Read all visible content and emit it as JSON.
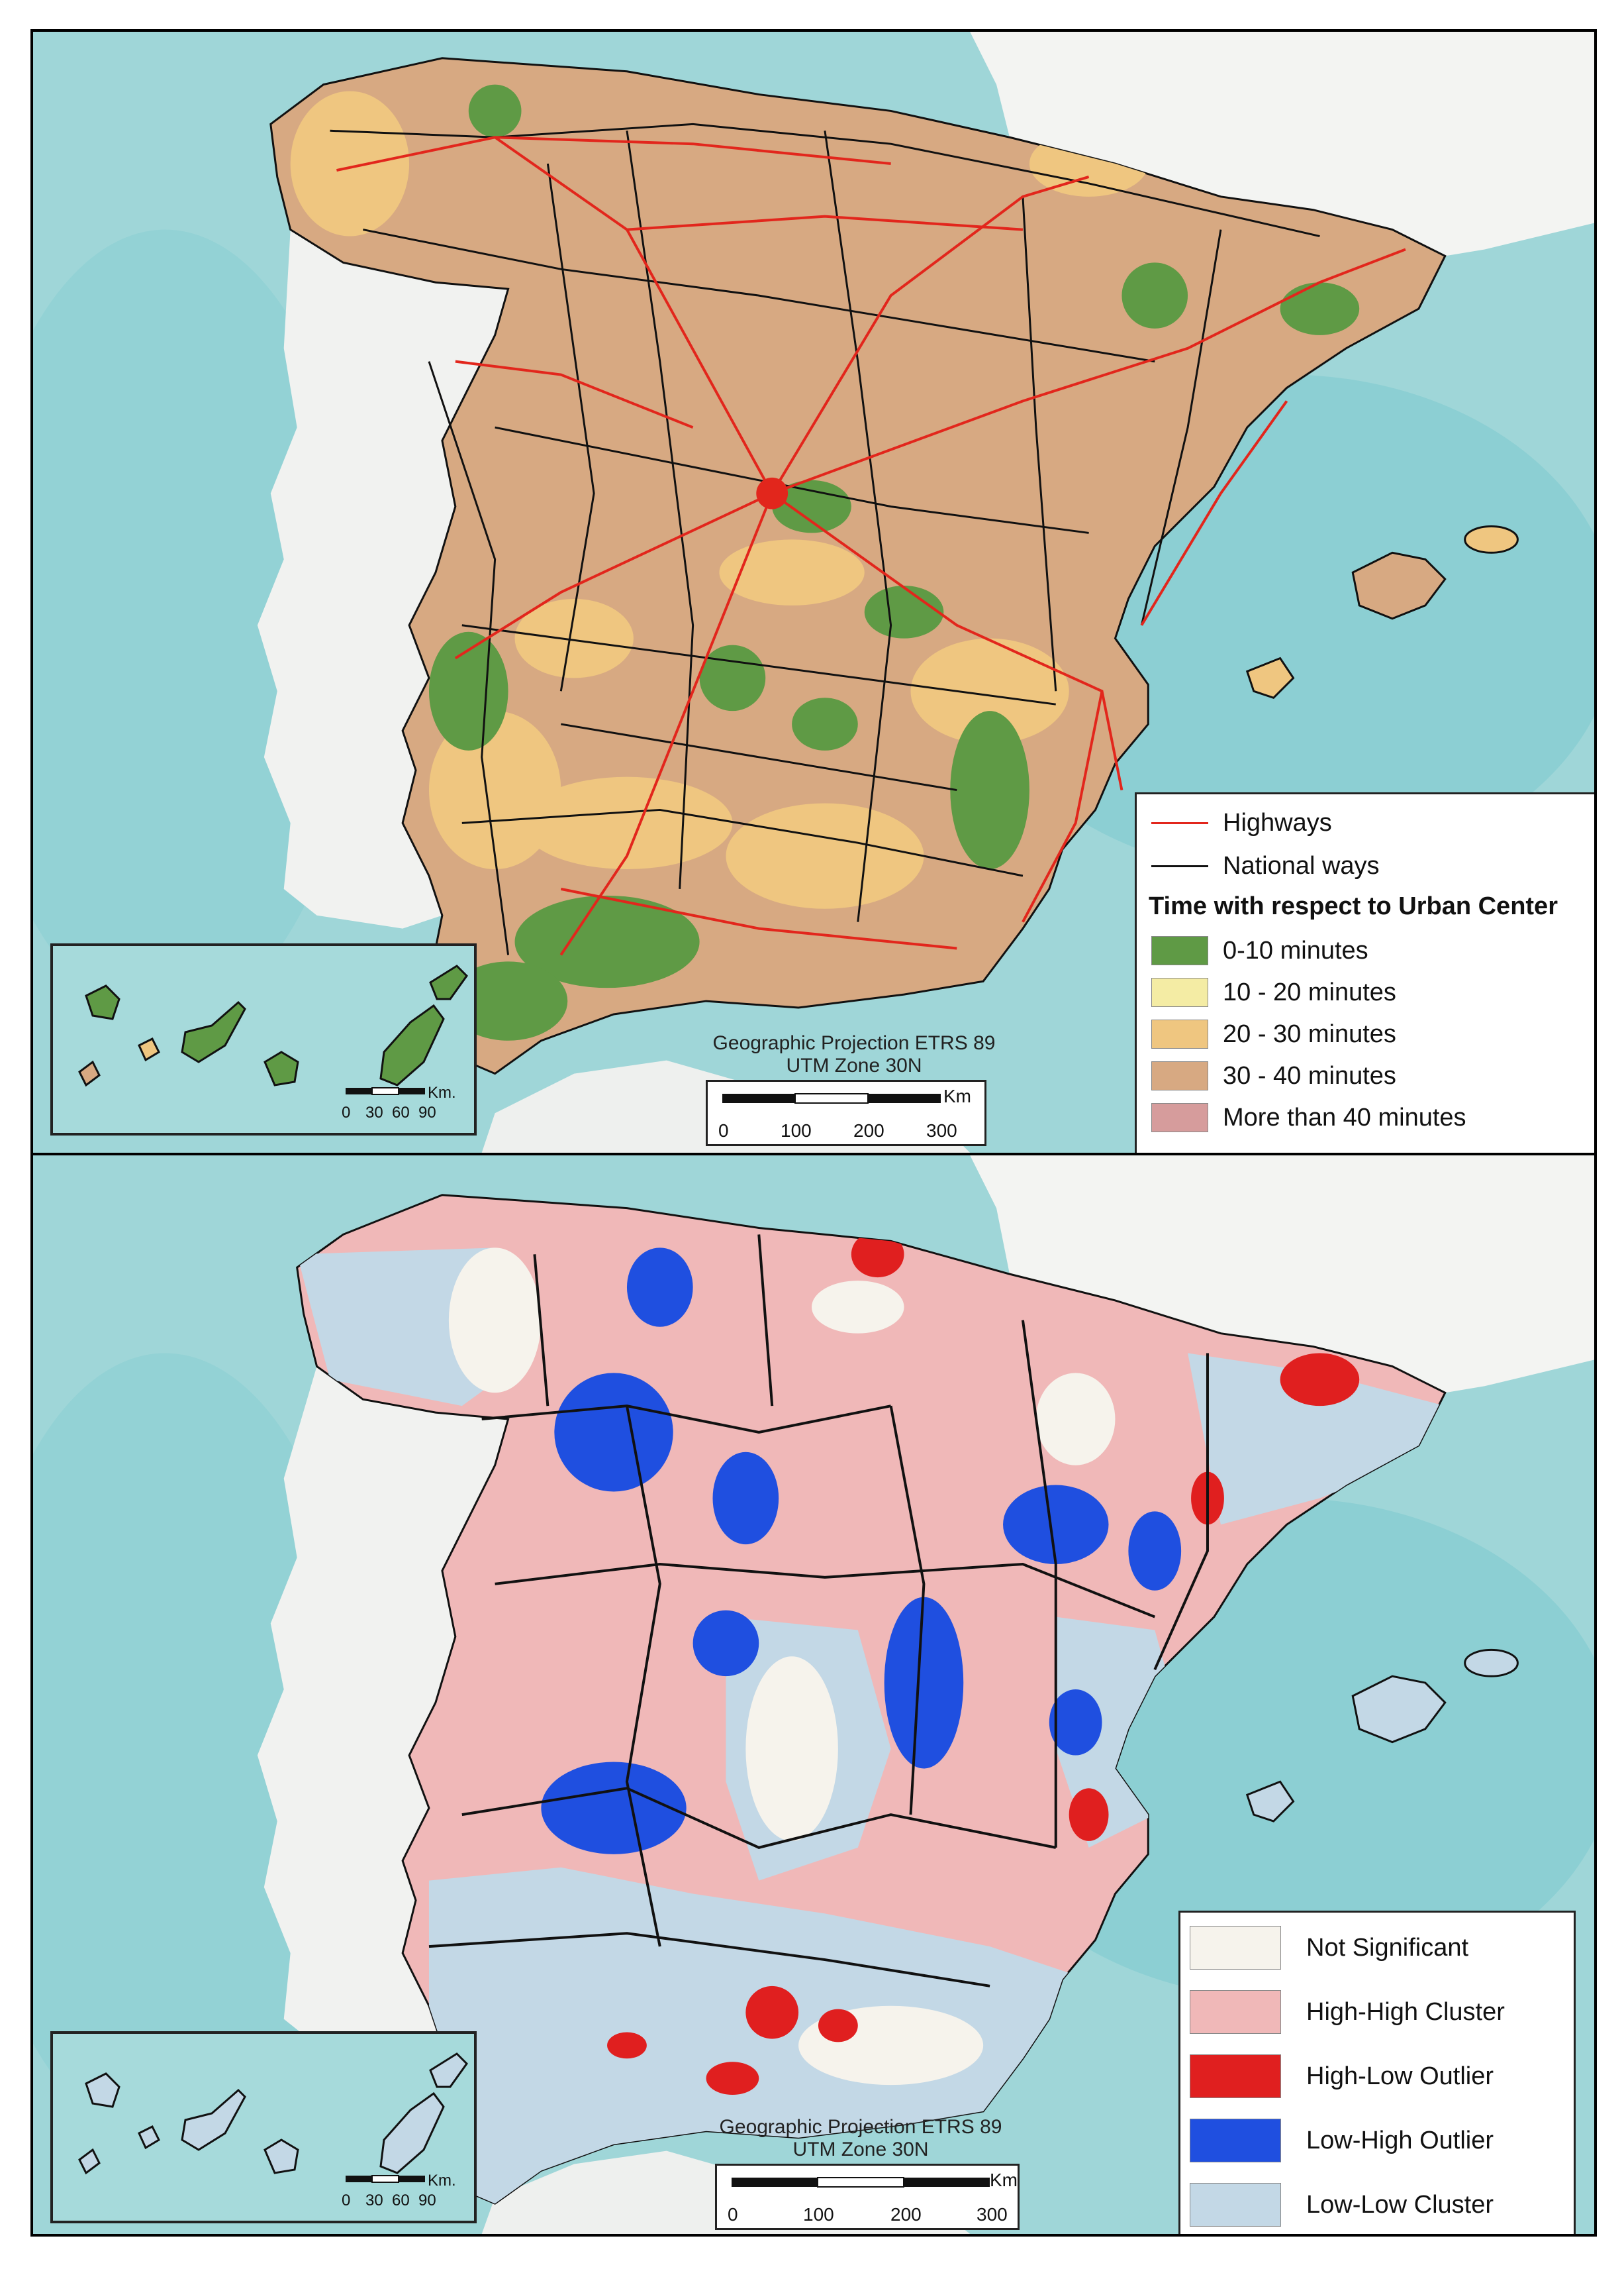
{
  "top_map": {
    "legend": {
      "lines": [
        {
          "label": "Highways",
          "color": "#e2261c"
        },
        {
          "label": "National ways",
          "color": "#111111"
        }
      ],
      "title": "Time with respect to Urban Center",
      "classes": [
        {
          "label": "0-10 minutes",
          "color": "#5f9a45"
        },
        {
          "label": "10 - 20 minutes",
          "color": "#f4eca4"
        },
        {
          "label": "20 - 30 minutes",
          "color": "#efc680"
        },
        {
          "label": "30 - 40 minutes",
          "color": "#d7a982"
        },
        {
          "label": "More than 40 minutes",
          "color": "#d69c9c"
        }
      ]
    },
    "projection_line1": "Geographic Projection ETRS 89",
    "projection_line2": "UTM Zone 30N",
    "scale_unit": "Km",
    "scale_ticks": [
      "0",
      "100",
      "200",
      "300"
    ],
    "inset_scale_unit": "Km.",
    "inset_scale_ticks": [
      "0",
      "30",
      "60",
      "90"
    ]
  },
  "bottom_map": {
    "legend": {
      "classes": [
        {
          "label": "Not Significant",
          "color": "#f6f3ec"
        },
        {
          "label": "High-High Cluster",
          "color": "#f0b8b8"
        },
        {
          "label": "High-Low Outlier",
          "color": "#e01f1f"
        },
        {
          "label": "Low-High Outlier",
          "color": "#1f4fe0"
        },
        {
          "label": "Low-Low Cluster",
          "color": "#c3d8e6"
        }
      ]
    },
    "projection_line1": "Geographic Projection ETRS 89",
    "projection_line2": "UTM Zone 30N",
    "scale_unit": "Km",
    "scale_ticks": [
      "0",
      "100",
      "200",
      "300"
    ],
    "inset_scale_unit": "Km.",
    "inset_scale_ticks": [
      "0",
      "30",
      "60",
      "90"
    ]
  }
}
